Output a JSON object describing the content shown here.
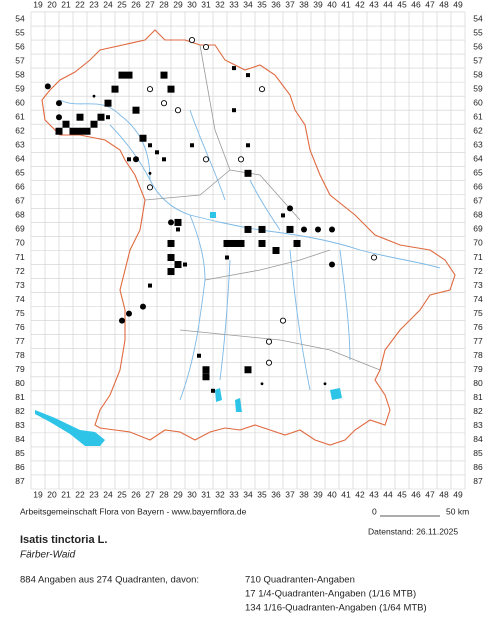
{
  "map": {
    "columns": [
      19,
      20,
      21,
      22,
      23,
      24,
      25,
      26,
      27,
      28,
      29,
      30,
      31,
      32,
      33,
      34,
      35,
      36,
      37,
      38,
      39,
      40,
      41,
      42,
      43,
      44,
      45,
      46,
      47,
      48,
      49
    ],
    "rows": [
      54,
      55,
      56,
      57,
      58,
      59,
      60,
      61,
      62,
      63,
      64,
      65,
      66,
      67,
      68,
      69,
      70,
      71,
      72,
      73,
      74,
      75,
      76,
      77,
      78,
      79,
      80,
      81,
      82,
      83,
      84,
      85,
      86,
      87
    ],
    "points": [
      {
        "col": 19.7,
        "row": 58.8,
        "marker": "circle"
      },
      {
        "col": 20.5,
        "row": 60,
        "marker": "circle"
      },
      {
        "col": 20.5,
        "row": 61,
        "marker": "circle"
      },
      {
        "col": 21,
        "row": 61.5,
        "marker": "square"
      },
      {
        "col": 21.5,
        "row": 62,
        "marker": "square"
      },
      {
        "col": 20.5,
        "row": 62,
        "marker": "square"
      },
      {
        "col": 22,
        "row": 61,
        "marker": "square"
      },
      {
        "col": 23,
        "row": 61.5,
        "marker": "square"
      },
      {
        "col": 23.5,
        "row": 61,
        "marker": "square"
      },
      {
        "col": 24,
        "row": 61,
        "marker": "small-square"
      },
      {
        "col": 24,
        "row": 60,
        "marker": "square"
      },
      {
        "col": 23,
        "row": 59.5,
        "marker": "dot"
      },
      {
        "col": 24.5,
        "row": 59,
        "marker": "square"
      },
      {
        "col": 25,
        "row": 58,
        "marker": "square"
      },
      {
        "col": 25.5,
        "row": 58,
        "marker": "square"
      },
      {
        "col": 28,
        "row": 58,
        "marker": "square"
      },
      {
        "col": 27,
        "row": 59,
        "marker": "open-circle"
      },
      {
        "col": 28.5,
        "row": 59,
        "marker": "square"
      },
      {
        "col": 29,
        "row": 60.5,
        "marker": "open-circle"
      },
      {
        "col": 26.5,
        "row": 62.5,
        "marker": "square"
      },
      {
        "col": 27,
        "row": 63,
        "marker": "small-square"
      },
      {
        "col": 27.5,
        "row": 63.5,
        "marker": "small-square"
      },
      {
        "col": 28,
        "row": 64,
        "marker": "small-square"
      },
      {
        "col": 26,
        "row": 64,
        "marker": "circle"
      },
      {
        "col": 25.5,
        "row": 64,
        "marker": "small-square"
      },
      {
        "col": 27,
        "row": 65,
        "marker": "dot"
      },
      {
        "col": 27,
        "row": 66,
        "marker": "open-circle"
      },
      {
        "col": 28.5,
        "row": 68.5,
        "marker": "circle"
      },
      {
        "col": 29,
        "row": 68.5,
        "marker": "square"
      },
      {
        "col": 29,
        "row": 69,
        "marker": "small-square"
      },
      {
        "col": 28.5,
        "row": 70,
        "marker": "square"
      },
      {
        "col": 28.5,
        "row": 71,
        "marker": "square"
      },
      {
        "col": 29,
        "row": 71.5,
        "marker": "square"
      },
      {
        "col": 29.5,
        "row": 71.5,
        "marker": "small-square"
      },
      {
        "col": 28.5,
        "row": 72,
        "marker": "square"
      },
      {
        "col": 27,
        "row": 73,
        "marker": "small-square"
      },
      {
        "col": 26.5,
        "row": 74.5,
        "marker": "circle"
      },
      {
        "col": 25.5,
        "row": 75,
        "marker": "circle"
      },
      {
        "col": 25,
        "row": 75.5,
        "marker": "circle"
      },
      {
        "col": 32.5,
        "row": 70,
        "marker": "square"
      },
      {
        "col": 33,
        "row": 70,
        "marker": "square"
      },
      {
        "col": 33.5,
        "row": 70,
        "marker": "square"
      },
      {
        "col": 34,
        "row": 69,
        "marker": "square"
      },
      {
        "col": 35,
        "row": 69,
        "marker": "square"
      },
      {
        "col": 35,
        "row": 70,
        "marker": "square"
      },
      {
        "col": 36,
        "row": 70.5,
        "marker": "square"
      },
      {
        "col": 37,
        "row": 69,
        "marker": "square"
      },
      {
        "col": 38,
        "row": 69,
        "marker": "circle"
      },
      {
        "col": 39,
        "row": 69,
        "marker": "circle"
      },
      {
        "col": 40,
        "row": 69,
        "marker": "circle"
      },
      {
        "col": 37.5,
        "row": 70,
        "marker": "square"
      },
      {
        "col": 36.5,
        "row": 68,
        "marker": "small-square"
      },
      {
        "col": 37,
        "row": 67.5,
        "marker": "circle"
      },
      {
        "col": 32.5,
        "row": 71,
        "marker": "small-square"
      },
      {
        "col": 30.5,
        "row": 78,
        "marker": "small-square"
      },
      {
        "col": 31,
        "row": 79,
        "marker": "square"
      },
      {
        "col": 31,
        "row": 79.5,
        "marker": "square"
      },
      {
        "col": 31.5,
        "row": 80.5,
        "marker": "small-square"
      },
      {
        "col": 34,
        "row": 79,
        "marker": "square"
      },
      {
        "col": 35.5,
        "row": 78.5,
        "marker": "open-circle"
      },
      {
        "col": 35.5,
        "row": 77,
        "marker": "open-circle"
      },
      {
        "col": 36.5,
        "row": 75.5,
        "marker": "open-circle"
      },
      {
        "col": 35,
        "row": 80,
        "marker": "dot"
      },
      {
        "col": 39.5,
        "row": 80,
        "marker": "dot"
      },
      {
        "col": 40,
        "row": 71.5,
        "marker": "circle"
      },
      {
        "col": 43,
        "row": 71,
        "marker": "open-circle"
      },
      {
        "col": 30,
        "row": 55.5,
        "marker": "open-circle"
      },
      {
        "col": 31,
        "row": 56,
        "marker": "open-circle"
      },
      {
        "col": 33,
        "row": 57.5,
        "marker": "small-square"
      },
      {
        "col": 34,
        "row": 58,
        "marker": "small-square"
      },
      {
        "col": 35,
        "row": 59,
        "marker": "open-circle"
      },
      {
        "col": 33,
        "row": 60.5,
        "marker": "small-square"
      },
      {
        "col": 30,
        "row": 63,
        "marker": "small-square"
      },
      {
        "col": 31,
        "row": 64,
        "marker": "open-circle"
      },
      {
        "col": 33.5,
        "row": 64,
        "marker": "open-circle"
      },
      {
        "col": 34,
        "row": 65,
        "marker": "square"
      },
      {
        "col": 34,
        "row": 63,
        "marker": "small-square"
      },
      {
        "col": 28,
        "row": 60,
        "marker": "open-circle"
      },
      {
        "col": 26,
        "row": 60.5,
        "marker": "square"
      },
      {
        "col": 22,
        "row": 62,
        "marker": "square"
      },
      {
        "col": 22.5,
        "row": 62,
        "marker": "square"
      }
    ]
  },
  "footer": {
    "credit": "Arbeitsgemeinschaft Flora von Bayern - www.bayernflora.de",
    "scale_start": "0",
    "scale_end": "50 km",
    "date": "Datenstand: 26.11.2025",
    "title": "Isatis tinctoria L.",
    "common_name": "Färber-Waid",
    "summary": "884 Angaben aus 274 Quadranten, davon:",
    "counts": [
      "710 Quadranten-Angaben",
      "17 1/4-Quadranten-Angaben (1/16 MTB)",
      "134 1/16-Quadranten-Angaben (1/64 MTB)"
    ]
  }
}
